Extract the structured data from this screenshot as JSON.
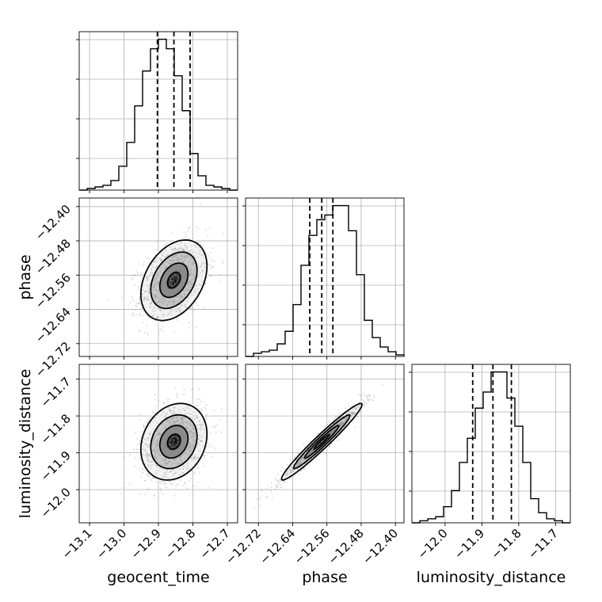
{
  "chart_data": {
    "type": "corner",
    "parameters": [
      "geocent_time",
      "phase",
      "luminosity_distance"
    ],
    "ranges": {
      "geocent_time": [
        -13.13,
        -12.67
      ],
      "phase": [
        -12.75,
        -12.38
      ],
      "luminosity_distance": [
        -12.09,
        -11.66
      ]
    },
    "ticks": {
      "geocent_time": {
        "values": [
          -13.1,
          -13.0,
          -12.9,
          -12.8,
          -12.7
        ],
        "labels": [
          "−13.1",
          "−13.0",
          "−12.9",
          "−12.8",
          "−12.7"
        ]
      },
      "phase": {
        "values": [
          -12.72,
          -12.64,
          -12.56,
          -12.48,
          -12.4
        ],
        "labels": [
          "−12.72",
          "−12.64",
          "−12.56",
          "−12.48",
          "−12.40"
        ]
      },
      "luminosity_distance": {
        "values": [
          -12.0,
          -11.9,
          -11.8,
          -11.7
        ],
        "labels": [
          "−12.0",
          "−11.9",
          "−11.8",
          "−11.7"
        ]
      }
    },
    "quantiles": {
      "geocent_time": [
        -12.903,
        -12.855,
        -12.808
      ],
      "phase": [
        -12.6,
        -12.572,
        -12.546
      ],
      "luminosity_distance": [
        -11.925,
        -11.87,
        -11.82
      ]
    },
    "histograms": {
      "geocent_time": [
        0,
        1,
        2,
        3,
        6,
        15,
        30,
        53,
        75,
        89,
        95,
        89,
        72,
        50,
        23,
        9,
        3,
        2,
        1,
        0
      ],
      "phase": [
        0,
        2,
        3,
        4,
        8,
        16,
        33,
        58,
        77,
        87,
        90,
        96,
        96,
        80,
        52,
        23,
        12,
        6,
        3,
        1
      ],
      "luminosity_distance": [
        0,
        1,
        2,
        3,
        8,
        16,
        30,
        42,
        57,
        65,
        75,
        75,
        62,
        48,
        30,
        12,
        5,
        2,
        1,
        0
      ]
    },
    "pairs": [
      {
        "x": "geocent_time",
        "y": "phase",
        "mean": [
          -12.855,
          -12.572
        ],
        "sd": [
          0.048,
          0.047
        ],
        "rho": 0.35
      },
      {
        "x": "geocent_time",
        "y": "luminosity_distance",
        "mean": [
          -12.855,
          -11.87
        ],
        "sd": [
          0.048,
          0.052
        ],
        "rho": 0.2
      },
      {
        "x": "phase",
        "y": "luminosity_distance",
        "mean": [
          -12.572,
          -11.87
        ],
        "sd": [
          0.047,
          0.052
        ],
        "rho": 0.97
      }
    ],
    "grid": true
  }
}
